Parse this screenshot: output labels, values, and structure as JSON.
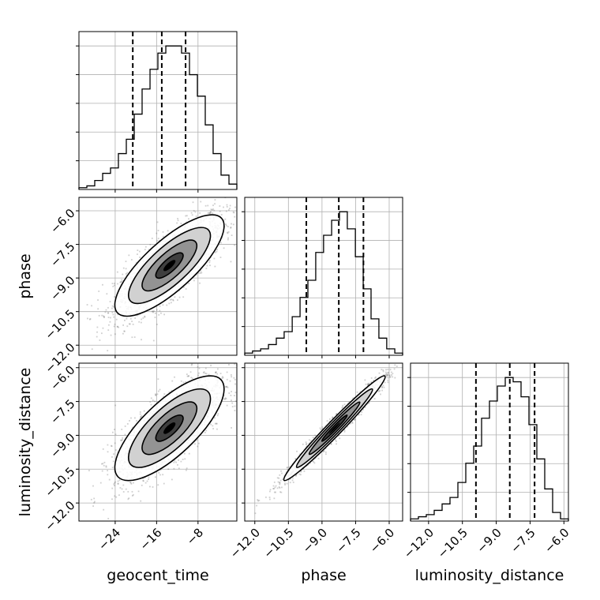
{
  "chart_data": {
    "type": "corner",
    "parameters": [
      "geocent_time",
      "phase",
      "luminosity_distance"
    ],
    "axes": {
      "geocent_time": {
        "range": [
          -31,
          -0.5
        ],
        "ticks": [
          "-24",
          "-16",
          "-8"
        ]
      },
      "phase": {
        "range": [
          -12.45,
          -5.4
        ],
        "ticks": [
          "-12.0",
          "-10.5",
          "-9.0",
          "-7.5",
          "-6.0"
        ]
      },
      "luminosity_distance": {
        "range": [
          -12.8,
          -5.8
        ],
        "ticks": [
          "-12.0",
          "-10.5",
          "-9.0",
          "-7.5",
          "-6.0"
        ]
      }
    },
    "quantiles": {
      "geocent_time": [
        -20.6,
        -15.0,
        -10.4
      ],
      "phase": [
        -9.7,
        -8.25,
        -7.15
      ],
      "luminosity_distance": [
        -9.9,
        -8.4,
        -7.3
      ]
    },
    "histograms": {
      "geocent_time": {
        "edges": [
          -31,
          -29.47,
          -27.95,
          -26.42,
          -24.9,
          -23.38,
          -21.85,
          -20.32,
          -18.8,
          -17.27,
          -15.75,
          -14.22,
          -12.7,
          -11.18,
          -9.65,
          -8.12,
          -6.6,
          -5.08,
          -3.55,
          -2.02,
          -0.5
        ],
        "counts": [
          1,
          2,
          5,
          9,
          12,
          20,
          28,
          42,
          56,
          67,
          76,
          80,
          80,
          76,
          64,
          52,
          36,
          20,
          8,
          3
        ]
      },
      "phase": {
        "edges": [
          -12.45,
          -12.1,
          -11.74,
          -11.39,
          -11.04,
          -10.69,
          -10.33,
          -9.98,
          -9.63,
          -9.28,
          -8.93,
          -8.57,
          -8.22,
          -7.87,
          -7.51,
          -7.16,
          -6.81,
          -6.46,
          -6.11,
          -5.75,
          -5.4
        ],
        "counts": [
          1,
          2,
          3,
          5,
          8,
          11,
          18,
          27,
          35,
          48,
          56,
          63,
          67,
          59,
          46,
          31,
          17,
          8,
          3,
          1
        ]
      },
      "luminosity_distance": {
        "edges": [
          -12.8,
          -12.45,
          -12.1,
          -11.75,
          -11.4,
          -11.05,
          -10.7,
          -10.35,
          -10.0,
          -9.65,
          -9.3,
          -8.95,
          -8.6,
          -8.25,
          -7.9,
          -7.55,
          -7.2,
          -6.85,
          -6.5,
          -6.15,
          -5.8
        ],
        "counts": [
          1,
          2,
          3,
          5,
          8,
          11,
          18,
          27,
          35,
          48,
          56,
          63,
          67,
          65,
          58,
          45,
          29,
          15,
          4,
          1
        ]
      }
    },
    "correlations": {
      "phase_vs_geocent_time": 0.78,
      "luminosity_distance_vs_geocent_time": 0.75,
      "luminosity_distance_vs_phase": 0.98
    }
  }
}
